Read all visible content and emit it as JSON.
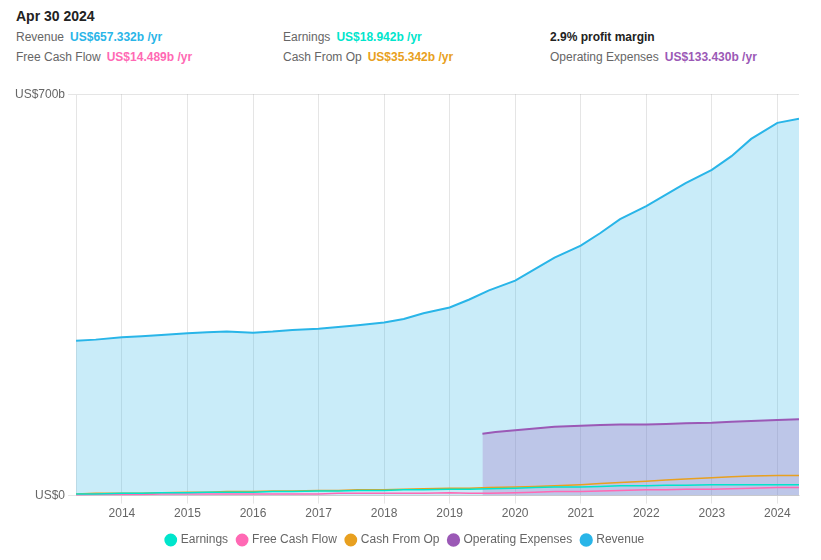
{
  "chart_data": {
    "type": "line",
    "title": "Apr 30 2024",
    "series": [
      {
        "name": "Revenue",
        "type": "area",
        "color": "#29b5e8",
        "x": [
          2013.3,
          2013.6,
          2014.0,
          2014.3,
          2014.6,
          2015.0,
          2015.3,
          2015.6,
          2016.0,
          2016.3,
          2016.6,
          2017.0,
          2017.3,
          2017.6,
          2018.0,
          2018.3,
          2018.6,
          2019.0,
          2019.3,
          2019.6,
          2020.0,
          2020.3,
          2020.6,
          2021.0,
          2021.3,
          2021.6,
          2022.0,
          2022.3,
          2022.6,
          2023.0,
          2023.3,
          2023.6,
          2024.0,
          2024.33
        ],
        "values": [
          270,
          272,
          276,
          278,
          280,
          283,
          285,
          286,
          284,
          286,
          289,
          291,
          294,
          297,
          302,
          308,
          318,
          328,
          342,
          358,
          375,
          395,
          415,
          436,
          458,
          482,
          505,
          525,
          545,
          568,
          592,
          622,
          650,
          657
        ]
      },
      {
        "name": "Earnings",
        "type": "line",
        "color": "#00e5cc",
        "x": [
          2013.3,
          2013.6,
          2014.0,
          2014.3,
          2014.6,
          2015.0,
          2015.3,
          2015.6,
          2016.0,
          2016.3,
          2016.6,
          2017.0,
          2017.3,
          2017.6,
          2018.0,
          2018.3,
          2018.6,
          2019.0,
          2019.3,
          2019.6,
          2020.0,
          2020.3,
          2020.6,
          2021.0,
          2021.3,
          2021.6,
          2022.0,
          2022.3,
          2022.6,
          2023.0,
          2023.3,
          2023.6,
          2024.0,
          2024.33
        ],
        "values": [
          3,
          3,
          4,
          4,
          5,
          5,
          6,
          6,
          6,
          7,
          7,
          8,
          8,
          9,
          9,
          10,
          10,
          11,
          11,
          12,
          13,
          14,
          15,
          15,
          16,
          17,
          17,
          18,
          18,
          19,
          19,
          19,
          19,
          19
        ]
      },
      {
        "name": "Free Cash Flow",
        "type": "line",
        "color": "#ff69b4",
        "x": [
          2013.3,
          2013.6,
          2014.0,
          2014.3,
          2014.6,
          2015.0,
          2015.3,
          2015.6,
          2016.0,
          2016.3,
          2016.6,
          2017.0,
          2017.3,
          2017.6,
          2018.0,
          2018.3,
          2018.6,
          2019.0,
          2019.3,
          2019.6,
          2020.0,
          2020.3,
          2020.6,
          2021.0,
          2021.3,
          2021.6,
          2022.0,
          2022.3,
          2022.6,
          2023.0,
          2023.3,
          2023.6,
          2024.0,
          2024.33
        ],
        "values": [
          1,
          2,
          2,
          2,
          3,
          3,
          3,
          3,
          3,
          3,
          3,
          3,
          4,
          4,
          4,
          4,
          4,
          5,
          4,
          4,
          5,
          6,
          7,
          7,
          8,
          9,
          10,
          10,
          11,
          11,
          12,
          13,
          14,
          14
        ]
      },
      {
        "name": "Cash From Op",
        "type": "line",
        "color": "#e8a020",
        "x": [
          2013.3,
          2013.6,
          2014.0,
          2014.3,
          2014.6,
          2015.0,
          2015.3,
          2015.6,
          2016.0,
          2016.3,
          2016.6,
          2017.0,
          2017.3,
          2017.6,
          2018.0,
          2018.3,
          2018.6,
          2019.0,
          2019.3,
          2019.6,
          2020.0,
          2020.3,
          2020.6,
          2021.0,
          2021.3,
          2021.6,
          2022.0,
          2022.3,
          2022.6,
          2023.0,
          2023.3,
          2023.6,
          2024.0,
          2024.33
        ],
        "values": [
          3,
          4,
          4,
          4,
          5,
          6,
          6,
          7,
          7,
          8,
          8,
          9,
          9,
          10,
          10,
          11,
          12,
          13,
          13,
          14,
          15,
          16,
          17,
          19,
          21,
          23,
          25,
          27,
          29,
          31,
          33,
          34,
          35,
          35
        ]
      },
      {
        "name": "Operating Expenses",
        "type": "area",
        "color": "#9b59b6",
        "x": [
          2019.5,
          2019.7,
          2020.0,
          2020.3,
          2020.6,
          2021.0,
          2021.3,
          2021.6,
          2022.0,
          2022.3,
          2022.6,
          2023.0,
          2023.3,
          2023.6,
          2024.0,
          2024.33
        ],
        "values": [
          108,
          111,
          114,
          117,
          120,
          122,
          123,
          124,
          124,
          125,
          126,
          127,
          129,
          130,
          132,
          133
        ]
      }
    ],
    "xlim": [
      2013.3,
      2024.33
    ],
    "xticks": [
      2014,
      2015,
      2016,
      2017,
      2018,
      2019,
      2020,
      2021,
      2022,
      2023,
      2024
    ],
    "ylim": [
      0,
      700
    ],
    "yticks": [
      {
        "value": 0,
        "label": "US$0"
      },
      {
        "value": 700,
        "label": "US$700b"
      }
    ],
    "grid": true,
    "legend": "bottom",
    "annotations": [
      {
        "label": "Revenue",
        "text": "US$657.332b /yr"
      },
      {
        "label": "Earnings",
        "text": "US$18.942b /yr"
      },
      {
        "text": "2.9% profit margin"
      },
      {
        "label": "Free Cash Flow",
        "text": "US$14.489b /yr"
      },
      {
        "label": "Cash From Op",
        "text": "US$35.342b /yr"
      },
      {
        "label": "Operating Expenses",
        "text": "US$133.430b /yr"
      }
    ]
  }
}
